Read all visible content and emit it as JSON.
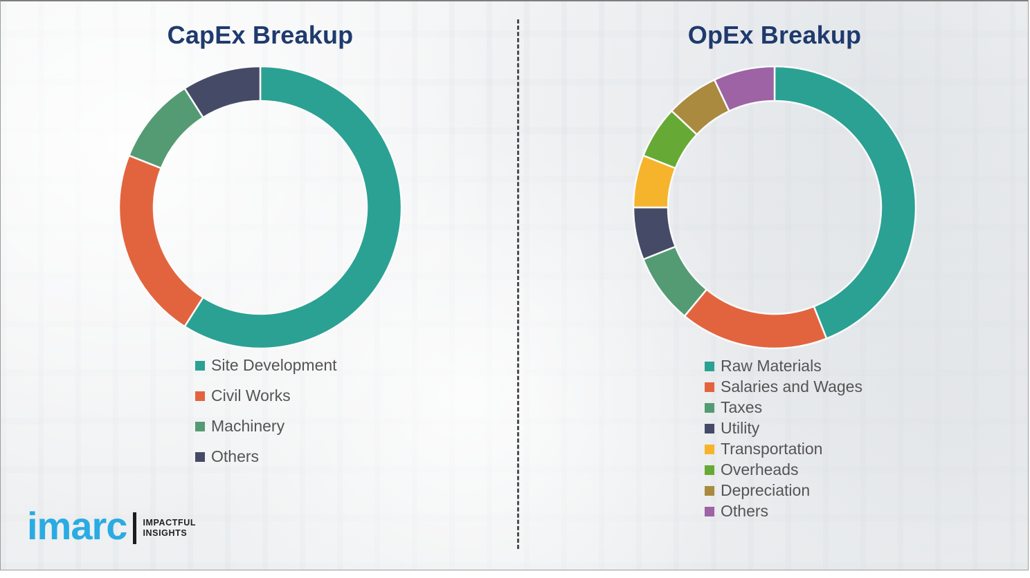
{
  "page": {
    "background": "#f2f3f5",
    "divider_color": "#4e4e4e",
    "title_color": "#1f3a6d",
    "legend_text_color": "#545454"
  },
  "chart_data": [
    {
      "type": "pie",
      "variant": "donut",
      "title": "CapEx Breakup",
      "legend_position": "below-left",
      "labels": [
        "Site Development",
        "Civil Works",
        "Machinery",
        "Others"
      ],
      "values": [
        59,
        22,
        10,
        9
      ],
      "colors": [
        "#2aa193",
        "#e2643f",
        "#549b74",
        "#454b66"
      ],
      "units": "percent-estimated-from-arc-angles"
    },
    {
      "type": "pie",
      "variant": "donut",
      "title": "OpEx Breakup",
      "legend_position": "below-left",
      "labels": [
        "Raw Materials",
        "Salaries and Wages",
        "Taxes",
        "Utility",
        "Transportation",
        "Overheads",
        "Depreciation",
        "Others"
      ],
      "values": [
        44,
        17,
        8,
        6,
        6,
        6,
        6,
        7
      ],
      "colors": [
        "#2aa193",
        "#e2643f",
        "#549b74",
        "#454b66",
        "#f6b42c",
        "#66aa35",
        "#a98a3f",
        "#9d63a4"
      ],
      "units": "percent-estimated-from-arc-angles"
    }
  ],
  "logo": {
    "brand": "imarc",
    "brand_color": "#2aabe2",
    "tagline_line1": "IMPACTFUL",
    "tagline_line2": "INSIGHTS"
  }
}
